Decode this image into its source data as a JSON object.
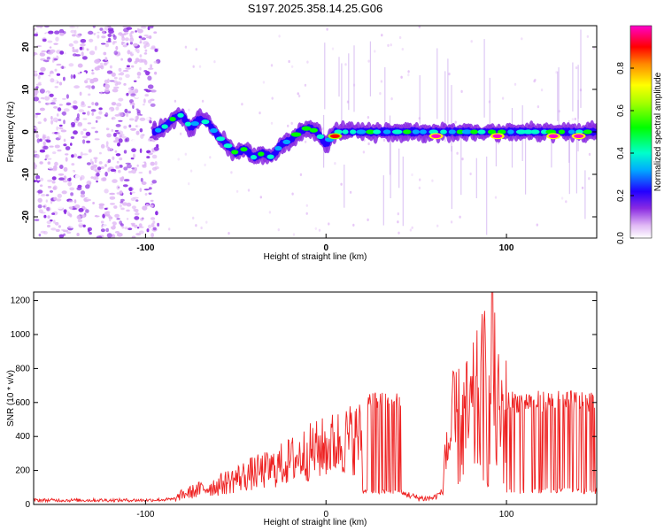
{
  "title": "S197.2025.358.14.25.G06",
  "chart_data": [
    {
      "type": "heatmap",
      "xlabel": "Height of straight line (km)",
      "ylabel": "Frequency (Hz)",
      "xlim": [
        -162,
        150
      ],
      "ylim": [
        -25,
        25
      ],
      "xticks": [
        {
          "v": -100,
          "label": "-100"
        },
        {
          "v": 0,
          "label": "0"
        },
        {
          "v": 100,
          "label": "100"
        }
      ],
      "yticks": [
        {
          "v": 20,
          "label": "20"
        },
        {
          "v": 10,
          "label": "10"
        },
        {
          "v": 0,
          "label": "0"
        },
        {
          "v": -10,
          "label": "-10"
        },
        {
          "v": -20,
          "label": "-20"
        }
      ],
      "colorbar": {
        "label": "Normalized spectral amplitude",
        "range": [
          0,
          1
        ],
        "ticks": [
          {
            "v": 0,
            "label": "0.0"
          },
          {
            "v": 0.2,
            "label": "0.2"
          },
          {
            "v": 0.4,
            "label": "0.4"
          },
          {
            "v": 0.6,
            "label": "0.6"
          },
          {
            "v": 0.8,
            "label": "0.8"
          }
        ]
      },
      "noise_region_x": [
        -162,
        -93
      ],
      "ridge": [
        {
          "x": -95,
          "f": 0
        },
        {
          "x": -90,
          "f": 1
        },
        {
          "x": -85,
          "f": 3
        },
        {
          "x": -80,
          "f": 4
        },
        {
          "x": -75,
          "f": 1
        },
        {
          "x": -70,
          "f": 3
        },
        {
          "x": -65,
          "f": 2
        },
        {
          "x": -60,
          "f": -1
        },
        {
          "x": -55,
          "f": -3
        },
        {
          "x": -50,
          "f": -5
        },
        {
          "x": -45,
          "f": -4
        },
        {
          "x": -40,
          "f": -6
        },
        {
          "x": -35,
          "f": -5
        },
        {
          "x": -30,
          "f": -6
        },
        {
          "x": -25,
          "f": -3
        },
        {
          "x": -20,
          "f": -2
        },
        {
          "x": -15,
          "f": 0
        },
        {
          "x": -10,
          "f": 1
        },
        {
          "x": -5,
          "f": 0
        },
        {
          "x": 0,
          "f": -3
        },
        {
          "x": 5,
          "f": 0
        },
        {
          "x": 150,
          "f": 0
        }
      ],
      "hot_spots": [
        {
          "x": 5,
          "f": -1,
          "a": 0.9
        },
        {
          "x": 61,
          "f": -1,
          "a": 1.0
        },
        {
          "x": 95,
          "f": -1,
          "a": 1.0
        },
        {
          "x": 126,
          "f": -1,
          "a": 1.0
        },
        {
          "x": 140,
          "f": -1,
          "a": 1.0
        }
      ]
    },
    {
      "type": "line",
      "xlabel": "Height of straight line (km)",
      "ylabel": "SNR (10 * v/v)",
      "xlim": [
        -162,
        150
      ],
      "ylim": [
        0,
        1250
      ],
      "xticks": [
        {
          "v": -100,
          "label": "-100"
        },
        {
          "v": 0,
          "label": "0"
        },
        {
          "v": 100,
          "label": "100"
        }
      ],
      "yticks": [
        {
          "v": 0,
          "label": "0"
        },
        {
          "v": 200,
          "label": "200"
        },
        {
          "v": 400,
          "label": "400"
        },
        {
          "v": 600,
          "label": "600"
        },
        {
          "v": 800,
          "label": "800"
        },
        {
          "v": 1000,
          "label": "1000"
        },
        {
          "v": 1200,
          "label": "1200"
        }
      ],
      "series": [
        {
          "name": "SNR",
          "color": "#ee2222",
          "x": [
            -162,
            -100,
            -85,
            -80,
            -70,
            -60,
            -50,
            -40,
            -30,
            -20,
            -10,
            0,
            10,
            20,
            21,
            22,
            25,
            30,
            35,
            40,
            41,
            42,
            45,
            50,
            55,
            60,
            65,
            66,
            68,
            70,
            75,
            80,
            85,
            88,
            90,
            92,
            95,
            100,
            105,
            110,
            115,
            120,
            125,
            130,
            135,
            140,
            145,
            150
          ],
          "y": [
            25,
            25,
            30,
            70,
            110,
            140,
            190,
            230,
            260,
            320,
            380,
            420,
            470,
            500,
            80,
            550,
            600,
            610,
            620,
            620,
            560,
            60,
            60,
            40,
            35,
            40,
            80,
            400,
            420,
            520,
            560,
            600,
            720,
            800,
            500,
            900,
            620,
            600,
            570,
            560,
            560,
            560,
            570,
            570,
            580,
            570,
            560,
            560
          ]
        }
      ]
    }
  ]
}
